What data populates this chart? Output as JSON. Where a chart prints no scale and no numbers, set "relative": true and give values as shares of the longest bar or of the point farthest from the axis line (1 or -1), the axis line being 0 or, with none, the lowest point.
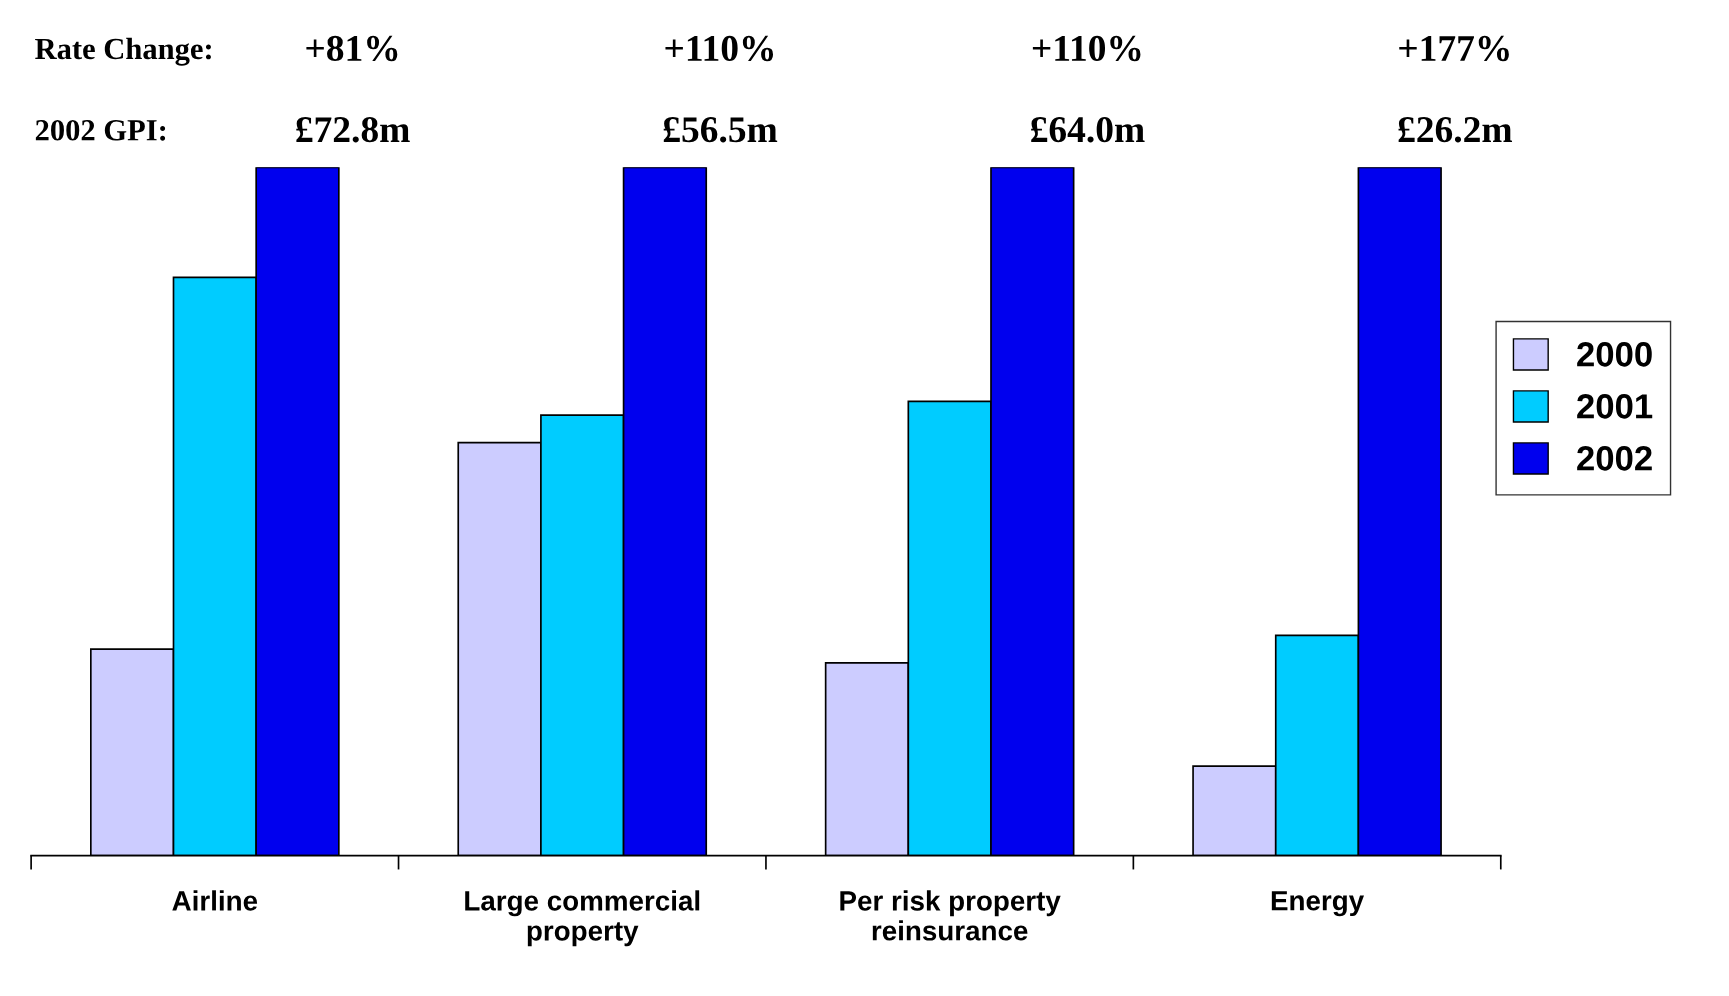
{
  "chart_data": {
    "type": "bar",
    "relative": true,
    "categories": [
      "Airline",
      "Large commercial\nproperty",
      "Per risk property\nreinsurance",
      "Energy"
    ],
    "series": [
      {
        "name": "2000",
        "color": "#ccccff",
        "values": [
          0.3,
          0.6,
          0.28,
          0.13
        ]
      },
      {
        "name": "2001",
        "color": "#00ccff",
        "values": [
          0.84,
          0.64,
          0.66,
          0.32
        ]
      },
      {
        "name": "2002",
        "color": "#0000ee",
        "values": [
          1,
          1,
          1,
          1
        ]
      }
    ],
    "annotations": [
      "Rate Change:",
      "+81%",
      "+110%",
      "+110%",
      "+177%",
      "2002 GPI:",
      "£72.8m",
      "£56.5m",
      "£64.0m",
      "£26.2m"
    ],
    "legend": "right",
    "grid": false
  }
}
